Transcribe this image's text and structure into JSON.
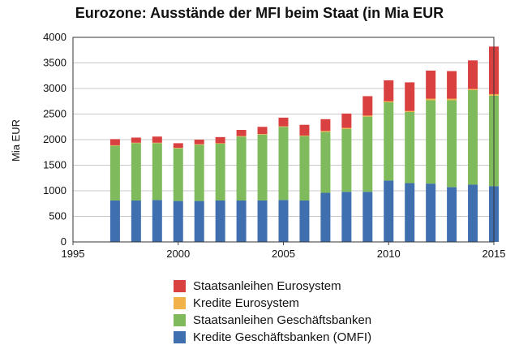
{
  "chart_data": {
    "type": "bar",
    "stacked": true,
    "title": "Eurozone: Ausstände der MFI beim Staat (in Mia EUR",
    "xlabel": "",
    "ylabel": "Mia EUR",
    "xlim": [
      1995,
      2015
    ],
    "ylim": [
      0,
      4000
    ],
    "x_ticks": [
      1995,
      2000,
      2005,
      2010,
      2015
    ],
    "y_ticks": [
      0,
      500,
      1000,
      1500,
      2000,
      2500,
      3000,
      3500,
      4000
    ],
    "grid": true,
    "legend_position": "bottom",
    "x": [
      1997,
      1998,
      1999,
      2000,
      2001,
      2002,
      2003,
      2004,
      2005,
      2006,
      2007,
      2008,
      2009,
      2010,
      2011,
      2012,
      2013,
      2014,
      2015
    ],
    "series": [
      {
        "name": "Kredite Geschäftsbanken (OMFI)",
        "color": "#3f6fae",
        "values": [
          810,
          810,
          820,
          800,
          800,
          810,
          810,
          810,
          820,
          810,
          960,
          980,
          980,
          1200,
          1150,
          1140,
          1070,
          1120,
          1090
        ]
      },
      {
        "name": "Staatsanleihen Geschäftsbanken",
        "color": "#7fbb5c",
        "values": [
          1070,
          1120,
          1110,
          1030,
          1100,
          1110,
          1250,
          1290,
          1430,
          1260,
          1190,
          1230,
          1470,
          1530,
          1390,
          1630,
          1700,
          1850,
          1770
        ]
      },
      {
        "name": "Kredite Eurosystem",
        "color": "#f2b24a",
        "values": [
          10,
          10,
          10,
          10,
          10,
          10,
          10,
          10,
          10,
          10,
          20,
          20,
          20,
          20,
          20,
          30,
          30,
          20,
          30
        ]
      },
      {
        "name": "Staatsanleihen Eurosystem",
        "color": "#d94040",
        "values": [
          120,
          100,
          120,
          90,
          90,
          120,
          120,
          140,
          170,
          210,
          230,
          280,
          380,
          410,
          560,
          550,
          540,
          560,
          930
        ]
      }
    ],
    "legend_order": [
      "Staatsanleihen Eurosystem",
      "Kredite Eurosystem",
      "Staatsanleihen Geschäftsbanken",
      "Kredite Geschäftsbanken (OMFI)"
    ]
  }
}
